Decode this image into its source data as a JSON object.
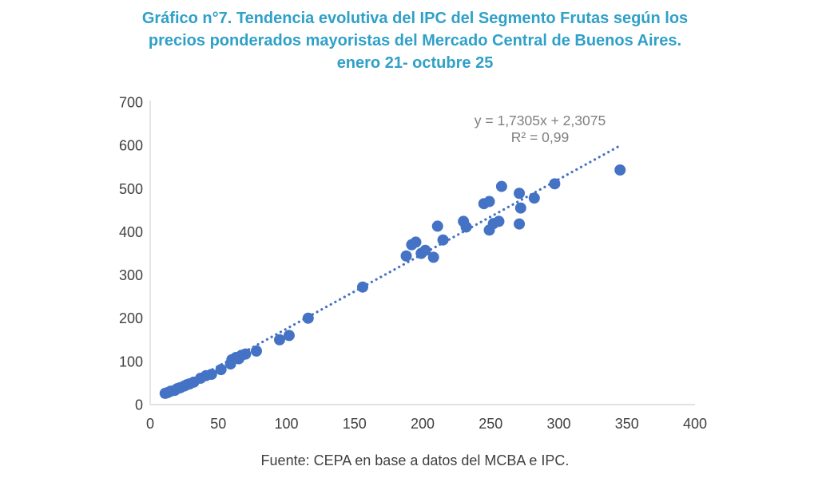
{
  "title": {
    "lines": [
      "Gráfico n°7. Tendencia evolutiva del IPC del Segmento Frutas según los",
      "precios ponderados mayoristas del Mercado Central de Buenos Aires.",
      "enero 21- octubre 25"
    ],
    "color": "#2FA0C8"
  },
  "footer": {
    "text": "Fuente: CEPA en base a datos del MCBA e IPC.",
    "color": "#404040"
  },
  "chart_data": {
    "type": "scatter",
    "title": "Gráfico n°7. Tendencia evolutiva del IPC del Segmento Frutas según los precios ponderados mayoristas del Mercado Central de Buenos Aires. enero 21- octubre 25",
    "xlabel": "",
    "ylabel": "",
    "xlim": [
      0,
      400
    ],
    "ylim": [
      0,
      700
    ],
    "x_ticks": [
      0,
      50,
      100,
      150,
      200,
      250,
      300,
      350,
      400
    ],
    "y_ticks": [
      0,
      100,
      200,
      300,
      400,
      500,
      600,
      700
    ],
    "grid": false,
    "legend": "none",
    "marker_color": "#4472C4",
    "axis_color": "#D9D9D9",
    "tick_label_color": "#404040",
    "points": [
      [
        11,
        26
      ],
      [
        13,
        28
      ],
      [
        15,
        31
      ],
      [
        18,
        33
      ],
      [
        20,
        37
      ],
      [
        22,
        39
      ],
      [
        25,
        43
      ],
      [
        27,
        46
      ],
      [
        29,
        48
      ],
      [
        32,
        52
      ],
      [
        37,
        61
      ],
      [
        41,
        67
      ],
      [
        45,
        70
      ],
      [
        52,
        81
      ],
      [
        59,
        94
      ],
      [
        60,
        104
      ],
      [
        63,
        109
      ],
      [
        65,
        106
      ],
      [
        67,
        114
      ],
      [
        70,
        117
      ],
      [
        78,
        124
      ],
      [
        95,
        150
      ],
      [
        102,
        160
      ],
      [
        116,
        200
      ],
      [
        156,
        272
      ],
      [
        188,
        344
      ],
      [
        192,
        370
      ],
      [
        195,
        376
      ],
      [
        199,
        350
      ],
      [
        202,
        357
      ],
      [
        208,
        341
      ],
      [
        211,
        413
      ],
      [
        215,
        381
      ],
      [
        230,
        424
      ],
      [
        232,
        411
      ],
      [
        245,
        465
      ],
      [
        249,
        470
      ],
      [
        249,
        404
      ],
      [
        252,
        419
      ],
      [
        256,
        424
      ],
      [
        258,
        505
      ],
      [
        271,
        489
      ],
      [
        272,
        455
      ],
      [
        271,
        418
      ],
      [
        282,
        478
      ],
      [
        297,
        511
      ],
      [
        345,
        543
      ]
    ],
    "trendline": {
      "slope": 1.7305,
      "intercept": 2.3075,
      "x_start": 9,
      "x_end": 345,
      "style": "dotted",
      "color": "#4472C4",
      "equation_line1": "y = 1,7305x + 2,3075",
      "equation_line2": "R² = 0,99",
      "equation_color": "#7F7F7F"
    }
  }
}
